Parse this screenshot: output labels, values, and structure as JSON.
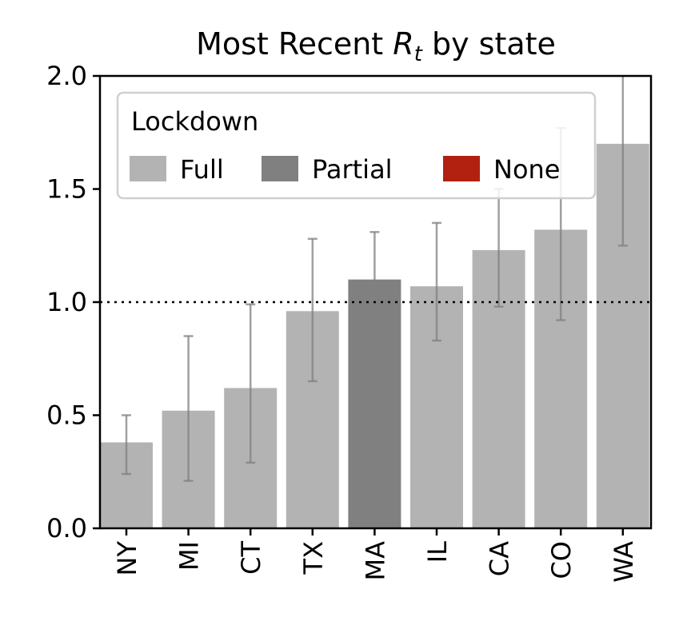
{
  "chart_data": {
    "type": "bar",
    "title_prefix": "Most Recent ",
    "title_symbol": "R",
    "title_subscript": "t",
    "title_suffix": " by state",
    "xlabel": "",
    "ylabel": "",
    "ylim": [
      0,
      2.0
    ],
    "yticks": [
      "0.0",
      "0.5",
      "1.0",
      "1.5",
      "2.0"
    ],
    "ytick_values": [
      0,
      0.5,
      1.0,
      1.5,
      2.0
    ],
    "reference_line": 1.0,
    "grid": false,
    "categories": [
      "NY",
      "MI",
      "CT",
      "TX",
      "MA",
      "IL",
      "CA",
      "CO",
      "WA"
    ],
    "values": [
      0.38,
      0.52,
      0.62,
      0.96,
      1.1,
      1.07,
      1.23,
      1.32,
      1.7
    ],
    "error_low": [
      0.24,
      0.21,
      0.29,
      0.65,
      0.86,
      0.83,
      0.98,
      0.92,
      1.25
    ],
    "error_high": [
      0.5,
      0.85,
      0.99,
      1.28,
      1.31,
      1.35,
      1.5,
      1.77,
      2.12
    ],
    "lockdown": [
      "Full",
      "Full",
      "Full",
      "Full",
      "Partial",
      "Full",
      "Full",
      "Full",
      "Full"
    ],
    "legend": {
      "title": "Lockdown",
      "placement": "top-left",
      "entries": [
        {
          "label": "Full",
          "color": "#b3b3b3"
        },
        {
          "label": "Partial",
          "color": "#808080"
        },
        {
          "label": "None",
          "color": "#b22010"
        }
      ]
    }
  }
}
